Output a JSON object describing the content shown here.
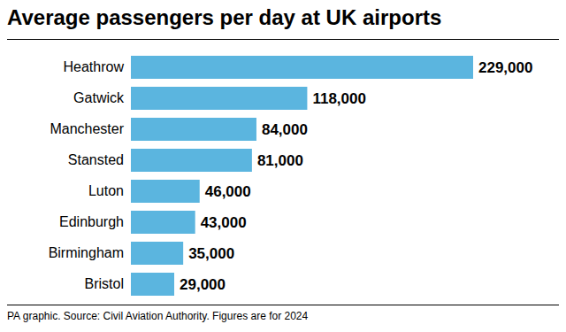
{
  "chart_data": {
    "type": "bar",
    "title": "Average passengers per day at UK airports",
    "caption": "PA graphic. Source: Civil Aviation Authority. Figures are for 2024",
    "orientation": "horizontal",
    "categories": [
      "Heathrow",
      "Gatwick",
      "Manchester",
      "Stansted",
      "Luton",
      "Edinburgh",
      "Birmingham",
      "Bristol"
    ],
    "values": [
      229000,
      118000,
      84000,
      81000,
      46000,
      43000,
      35000,
      29000
    ],
    "value_labels": [
      "229,000",
      "118,000",
      "84,000",
      "81,000",
      "46,000",
      "43,000",
      "35,000",
      "29,000"
    ],
    "data_labels": true,
    "tick_labels": "y",
    "color": "#5bb5df",
    "grid": false
  }
}
